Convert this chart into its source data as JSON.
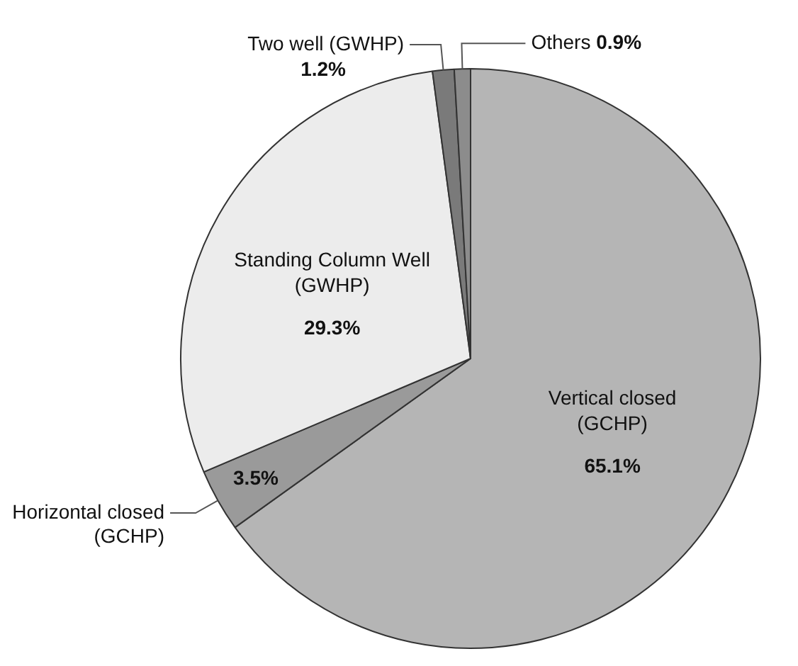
{
  "chart_data": {
    "type": "pie",
    "categories": [
      "Vertical closed (GCHP)",
      "Horizontal closed (GCHP)",
      "Standing Column Well (GWHP)",
      "Two well (GWHP)",
      "Others"
    ],
    "values": [
      65.1,
      3.5,
      29.3,
      1.2,
      0.9
    ],
    "colors": [
      "#b5b5b5",
      "#9a9a9a",
      "#ececec",
      "#7a7a7a",
      "#8c8c8c"
    ],
    "value_labels": [
      "65.1%",
      "3.5%",
      "29.3%",
      "1.2%",
      "0.9%"
    ],
    "legend": false
  }
}
